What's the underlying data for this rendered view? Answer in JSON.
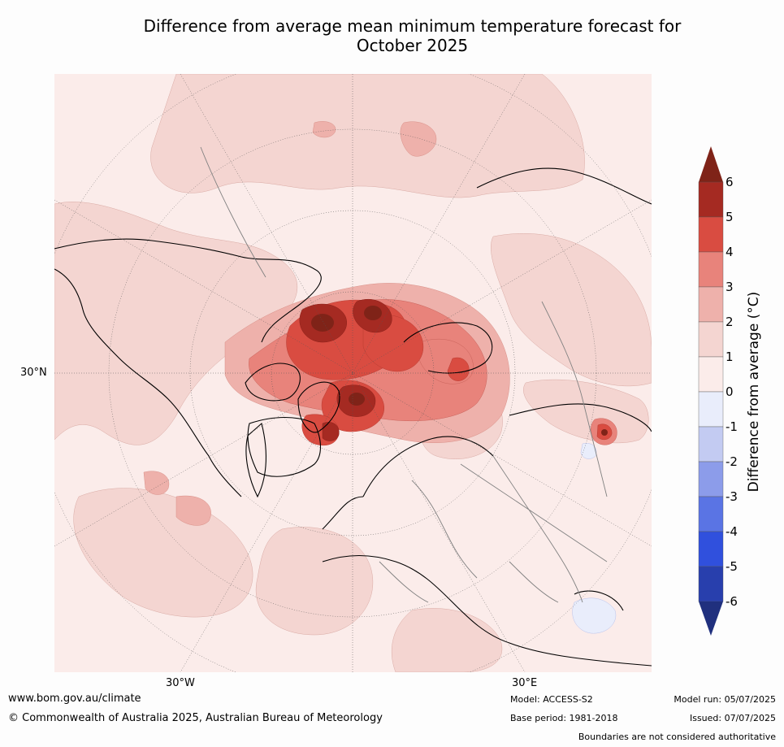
{
  "title": {
    "line1": "Difference from average mean minimum temperature forecast for",
    "line2": "October 2025"
  },
  "axis_labels": {
    "lat_30n": "30°N",
    "lon_30w": "30°W",
    "lon_30e": "30°E"
  },
  "colorbar": {
    "title": "Difference from average (°C)",
    "ticks": [
      "6",
      "5",
      "4",
      "3",
      "2",
      "1",
      "0",
      "-1",
      "-2",
      "-3",
      "-4",
      "-5",
      "-6"
    ],
    "bins": [
      {
        "range": "> 6",
        "color": "#7f2318"
      },
      {
        "range": "5 to 6",
        "color": "#a52a22"
      },
      {
        "range": "4 to 5",
        "color": "#d94c41"
      },
      {
        "range": "3 to 4",
        "color": "#e8837b"
      },
      {
        "range": "2 to 3",
        "color": "#eeb1ab"
      },
      {
        "range": "1 to 2",
        "color": "#f4d5d1"
      },
      {
        "range": "0 to 1",
        "color": "#fbecea"
      },
      {
        "range": "-1 to 0",
        "color": "#e9edfb"
      },
      {
        "range": "-2 to -1",
        "color": "#c3cbf2"
      },
      {
        "range": "-3 to -2",
        "color": "#8c9cea"
      },
      {
        "range": "-4 to -3",
        "color": "#5a74e4"
      },
      {
        "range": "-5 to -4",
        "color": "#3050dd"
      },
      {
        "range": "-6 to -5",
        "color": "#283fad"
      },
      {
        "range": "< -6",
        "color": "#20307e"
      }
    ]
  },
  "footer": {
    "website": "www.bom.gov.au/climate",
    "copyright": "© Commonwealth of Australia 2025, Australian Bureau of Meteorology",
    "model": "Model: ACCESS-S2",
    "base_period": "Base period: 1981-2018",
    "model_run": "Model run: 05/07/2025",
    "issued": "Issued: 07/07/2025",
    "disclaimer": "Boundaries are not considered authoritative"
  },
  "map_regions": [
    {
      "name": "arctic-ocean-anomaly",
      "level": "4 to 6"
    },
    {
      "name": "baffin-bay-anomaly",
      "level": "3 to 6"
    },
    {
      "name": "barents-kara-anomaly",
      "level": "2 to 4"
    },
    {
      "name": "caspian-hotspot",
      "level": "4 to 5"
    },
    {
      "name": "arabia-cool-patch",
      "level": "-1 to 0"
    }
  ]
}
